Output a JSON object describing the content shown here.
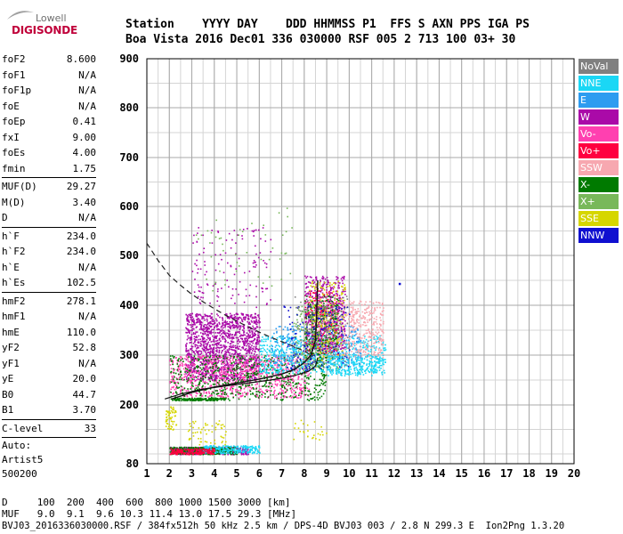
{
  "logo": {
    "lowell": "Lowell",
    "digisonde": "DIGISONDE"
  },
  "header": {
    "line1": "Station    YYYY DAY    DDD HHMMSS P1  FFS S AXN PPS IGA PS",
    "line2": "Boa Vista 2016 Dec01 336 030000 RSF 005 2 713 100 03+ 30"
  },
  "params": [
    {
      "name": "foF2",
      "value": "8.600"
    },
    {
      "name": "foF1",
      "value": "N/A"
    },
    {
      "name": "foF1p",
      "value": "N/A"
    },
    {
      "name": "foE",
      "value": "N/A"
    },
    {
      "name": "foEp",
      "value": "0.41"
    },
    {
      "name": "fxI",
      "value": "9.00"
    },
    {
      "name": "foEs",
      "value": "4.00"
    },
    {
      "name": "fmin",
      "value": "1.75"
    },
    {
      "name": "MUF(D)",
      "value": "29.27"
    },
    {
      "name": "M(D)",
      "value": "3.40"
    },
    {
      "name": "D",
      "value": "N/A"
    },
    {
      "name": "h`F",
      "value": "234.0"
    },
    {
      "name": "h`F2",
      "value": "234.0"
    },
    {
      "name": "h`E",
      "value": "N/A"
    },
    {
      "name": "h`Es",
      "value": "102.5"
    },
    {
      "name": "hmF2",
      "value": "278.1"
    },
    {
      "name": "hmF1",
      "value": "N/A"
    },
    {
      "name": "hmE",
      "value": "110.0"
    },
    {
      "name": "yF2",
      "value": "52.8"
    },
    {
      "name": "yF1",
      "value": "N/A"
    },
    {
      "name": "yE",
      "value": "20.0"
    },
    {
      "name": "B0",
      "value": "44.7"
    },
    {
      "name": "B1",
      "value": "3.70"
    },
    {
      "name": "C-level",
      "value": "33"
    }
  ],
  "auto": {
    "line1": "Auto:",
    "line2": "Artist5",
    "line3": "500200"
  },
  "legend": [
    {
      "label": "NoVal",
      "color": "#808080"
    },
    {
      "label": "NNE",
      "color": "#1ad7f5"
    },
    {
      "label": "E",
      "color": "#2d9cf0"
    },
    {
      "label": "W",
      "color": "#aa0aa8"
    },
    {
      "label": "Vo-",
      "color": "#ff40b0"
    },
    {
      "label": "Vo+",
      "color": "#ff0040"
    },
    {
      "label": "SSW",
      "color": "#f7a8b0"
    },
    {
      "label": "X-",
      "color": "#007a00"
    },
    {
      "label": "X+",
      "color": "#78b85a"
    },
    {
      "label": "SSE",
      "color": "#d6d600"
    },
    {
      "label": "NNW",
      "color": "#1010d0"
    }
  ],
  "footer": {
    "line1": "D     100  200  400  600  800 1000 1500 3000 [km]",
    "line2": "MUF   9.0  9.1  9.6 10.3 11.4 13.0 17.5 29.3 [MHz]",
    "line3": "BVJ03_2016336030000.RSF / 384fx512h 50 kHz 2.5 km / DPS-4D BVJ03 003 / 2.8 N 299.3 E  Ion2Png 1.3.20"
  },
  "chart_data": {
    "type": "scatter",
    "xlim": [
      1,
      20
    ],
    "ylim": [
      80,
      900
    ],
    "x_ticks": [
      "1",
      "2",
      "3",
      "4",
      "5",
      "6",
      "7",
      "8",
      "9",
      "10",
      "11",
      "12",
      "13",
      "14",
      "15",
      "16",
      "17",
      "18",
      "19",
      "20"
    ],
    "y_ticks": [
      "80",
      "200",
      "300",
      "400",
      "500",
      "600",
      "700",
      "800",
      "900"
    ],
    "y_tick_values": [
      80,
      200,
      300,
      400,
      500,
      600,
      700,
      800,
      900
    ],
    "grid": true,
    "profile_line": [
      [
        1.8,
        212
      ],
      [
        2.5,
        222
      ],
      [
        3.5,
        232
      ],
      [
        4.5,
        238
      ],
      [
        5.5,
        244
      ],
      [
        6.5,
        250
      ],
      [
        7.2,
        255
      ],
      [
        7.8,
        262
      ],
      [
        8.2,
        268
      ],
      [
        8.5,
        278
      ],
      [
        8.6,
        295
      ]
    ],
    "trace_line": [
      [
        2.1,
        212
      ],
      [
        3,
        225
      ],
      [
        4,
        236
      ],
      [
        5,
        244
      ],
      [
        6,
        252
      ],
      [
        7,
        262
      ],
      [
        7.6,
        272
      ],
      [
        8,
        285
      ],
      [
        8.3,
        300
      ],
      [
        8.5,
        330
      ],
      [
        8.55,
        380
      ],
      [
        8.6,
        450
      ]
    ],
    "dashed_curve": [
      [
        1,
        525
      ],
      [
        1.5,
        490
      ],
      [
        2,
        460
      ],
      [
        2.5,
        440
      ],
      [
        3,
        422
      ],
      [
        3.5,
        407
      ],
      [
        4,
        393
      ],
      [
        4.5,
        380
      ],
      [
        5,
        368
      ],
      [
        5.5,
        357
      ],
      [
        6,
        346
      ],
      [
        6.5,
        336
      ],
      [
        7,
        327
      ],
      [
        7.5,
        318
      ],
      [
        8,
        308
      ],
      [
        8.3,
        300
      ]
    ],
    "echo_regions": [
      {
        "color": "#aa0aa8",
        "x": [
          2.7,
          6.0
        ],
        "y": [
          250,
          385
        ],
        "n": 1500
      },
      {
        "color": "#ff40b0",
        "x": [
          2.0,
          8.2
        ],
        "y": [
          215,
          300
        ],
        "n": 900
      },
      {
        "color": "#007a00",
        "x": [
          2.0,
          9.0
        ],
        "y": [
          210,
          300
        ],
        "n": 600
      },
      {
        "color": "#1ad7f5",
        "x": [
          6.0,
          11.6
        ],
        "y": [
          265,
          340
        ],
        "n": 700
      },
      {
        "color": "#2d9cf0",
        "x": [
          6.5,
          10.5
        ],
        "y": [
          280,
          360
        ],
        "n": 300
      },
      {
        "color": "#f7a8b0",
        "x": [
          8.5,
          11.5
        ],
        "y": [
          295,
          410
        ],
        "n": 550
      },
      {
        "color": "#ff0040",
        "x": [
          8.0,
          9.5
        ],
        "y": [
          300,
          430
        ],
        "n": 250
      },
      {
        "color": "#aa0aa8",
        "x": [
          8.0,
          9.8
        ],
        "y": [
          310,
          460
        ],
        "n": 500
      },
      {
        "color": "#007a00",
        "x": [
          8.0,
          9.5
        ],
        "y": [
          290,
          420
        ],
        "n": 220
      },
      {
        "color": "#78b85a",
        "x": [
          7.5,
          9.5
        ],
        "y": [
          270,
          400
        ],
        "n": 220
      },
      {
        "color": "#d6d600",
        "x": [
          8.2,
          9.8
        ],
        "y": [
          290,
          450
        ],
        "n": 160
      },
      {
        "color": "#1010d0",
        "x": [
          7.0,
          10.0
        ],
        "y": [
          270,
          400
        ],
        "n": 150
      },
      {
        "color": "#808080",
        "x": [
          7.5,
          10.0
        ],
        "y": [
          270,
          420
        ],
        "n": 120
      },
      {
        "color": "#aa0aa8",
        "x": [
          3.0,
          6.5
        ],
        "y": [
          390,
          560
        ],
        "n": 130
      },
      {
        "color": "#78b85a",
        "x": [
          3.0,
          7.5
        ],
        "y": [
          430,
          600
        ],
        "n": 50
      },
      {
        "color": "#aa0aa8",
        "x": [
          2.0,
          5.5
        ],
        "y": [
          100,
          115
        ],
        "n": 450
      },
      {
        "color": "#007a00",
        "x": [
          2.0,
          5.0
        ],
        "y": [
          100,
          115
        ],
        "n": 350
      },
      {
        "color": "#1ad7f5",
        "x": [
          3.5,
          6.0
        ],
        "y": [
          102,
          118
        ],
        "n": 220
      },
      {
        "color": "#ff0040",
        "x": [
          2.0,
          4.0
        ],
        "y": [
          100,
          112
        ],
        "n": 180
      },
      {
        "color": "#d6d600",
        "x": [
          1.8,
          2.3
        ],
        "y": [
          150,
          200
        ],
        "n": 60
      },
      {
        "color": "#d6d600",
        "x": [
          2.8,
          4.5
        ],
        "y": [
          120,
          170
        ],
        "n": 60
      },
      {
        "color": "#d6d600",
        "x": [
          7.5,
          9.0
        ],
        "y": [
          130,
          170
        ],
        "n": 25
      },
      {
        "color": "#007a00",
        "x": [
          2.0,
          4.5
        ],
        "y": [
          210,
          215
        ],
        "n": 150
      },
      {
        "color": "#1ad7f5",
        "x": [
          9.0,
          11.5
        ],
        "y": [
          260,
          300
        ],
        "n": 200
      }
    ],
    "isolated_points": [
      {
        "x": 12.2,
        "y": 445,
        "color": "#1010d0"
      }
    ]
  }
}
